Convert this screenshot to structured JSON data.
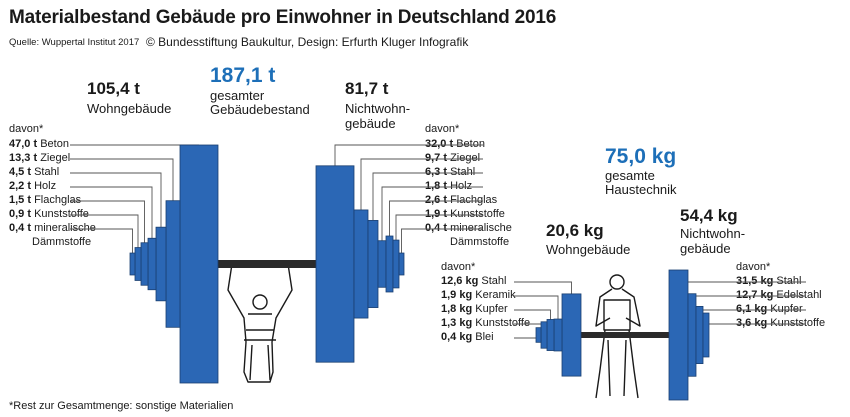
{
  "title": "Materialbestand Gebäude pro Einwohner in Deutschland 2016",
  "source": "Quelle: Wuppertal Institut 2017",
  "credit": "© Bundesstiftung Baukultur, Design: Erfurth Kluger Infografik",
  "footnote": "*Rest zur Gesamtmenge:  sonstige Materialien",
  "colors": {
    "plate": "#2b67b5",
    "accent": "#1d6fb8",
    "bar": "#2a2a2a"
  },
  "chart_data": [
    {
      "type": "bar",
      "total": {
        "value": "187,1 t",
        "label_1": "gesamter",
        "label_2": "Gebäudebestand"
      },
      "left": {
        "value": "105,4 t",
        "label_1": "Wohngebäude",
        "label_2": "",
        "davon": "davon*",
        "items": [
          {
            "amount": "47,0 t",
            "material": "Beton",
            "v": 47.0
          },
          {
            "amount": "13,3 t",
            "material": "Ziegel",
            "v": 13.3
          },
          {
            "amount": "4,5 t",
            "material": "Stahl",
            "v": 4.5
          },
          {
            "amount": "2,2 t",
            "material": "Holz",
            "v": 2.2
          },
          {
            "amount": "1,5 t",
            "material": "Flachglas",
            "v": 1.5
          },
          {
            "amount": "0,9 t",
            "material": "Kunststoffe",
            "v": 0.9
          },
          {
            "amount": "0,4 t",
            "material": "mineralische",
            "material_2": "Dämmstoffe",
            "v": 0.4
          }
        ]
      },
      "right": {
        "value": "81,7 t",
        "label_1": "Nichtwohn-",
        "label_2": "gebäude",
        "davon": "davon*",
        "items": [
          {
            "amount": "32,0 t",
            "material": "Beton",
            "v": 32.0
          },
          {
            "amount": "9,7 t",
            "material": "Ziegel",
            "v": 9.7
          },
          {
            "amount": "6,3 t",
            "material": "Stahl",
            "v": 6.3
          },
          {
            "amount": "1,8 t",
            "material": "Holz",
            "v": 1.8
          },
          {
            "amount": "2,6 t",
            "material": "Flachglas",
            "v": 2.6
          },
          {
            "amount": "1,9 t",
            "material": "Kunststoffe",
            "v": 1.9
          },
          {
            "amount": "0,4 t",
            "material": "mineralische",
            "material_2": "Dämmstoffe",
            "v": 0.4
          }
        ]
      }
    },
    {
      "type": "bar",
      "total": {
        "value": "75,0 kg",
        "label_1": "gesamte",
        "label_2": "Haustechnik"
      },
      "left": {
        "value": "20,6 kg",
        "label_1": "Wohngebäude",
        "label_2": "",
        "davon": "davon*",
        "items": [
          {
            "amount": "12,6 kg",
            "material": "Stahl",
            "v": 12.6
          },
          {
            "amount": "1,9 kg",
            "material": "Keramik",
            "v": 1.9
          },
          {
            "amount": "1,8 kg",
            "material": "Kupfer",
            "v": 1.8
          },
          {
            "amount": "1,3 kg",
            "material": "Kunststoffe",
            "v": 1.3
          },
          {
            "amount": "0,4 kg",
            "material": "Blei",
            "v": 0.4
          }
        ]
      },
      "right": {
        "value": "54,4 kg",
        "label_1": "Nichtwohn-",
        "label_2": "gebäude",
        "davon": "davon*",
        "items": [
          {
            "amount": "31,5 kg",
            "material": "Stahl",
            "v": 31.5
          },
          {
            "amount": "12,7 kg",
            "material": "Edelstahl",
            "v": 12.7
          },
          {
            "amount": "6,1 kg",
            "material": "Kupfer",
            "v": 6.1
          },
          {
            "amount": "3,6 kg",
            "material": "Kunststoffe",
            "v": 3.6
          }
        ]
      }
    }
  ]
}
